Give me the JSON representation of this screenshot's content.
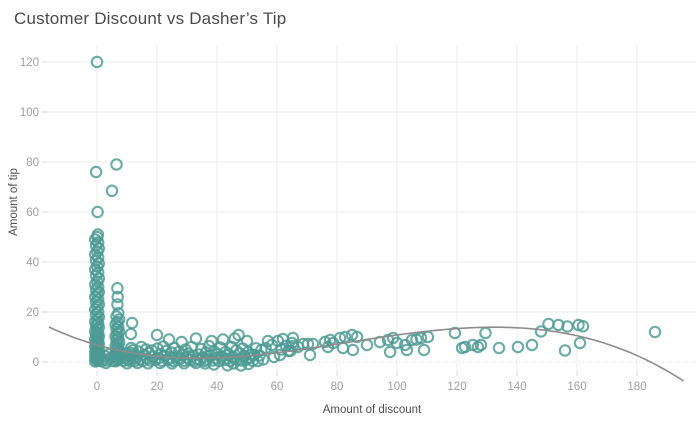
{
  "title": "Customer Discount vs Dasher’s Tip",
  "style": {
    "marker_color": "#4a9a93",
    "marker_opacity": 0.82,
    "marker_radius": 5.2,
    "marker_stroke_width": 2.1,
    "trend_color": "#8d8d8d",
    "trend_width": 1.6,
    "grid_color": "#eeeeee",
    "zero_line_color": "#d6d6d6",
    "tick_mark_color": "#d9d9d9",
    "tick_label_color": "#a0a0a0",
    "axis_title_color": "#4f4f4f",
    "title_color": "#4a4a4a"
  },
  "chart_data": {
    "type": "scatter",
    "title": "Customer Discount vs Dasher’s Tip",
    "xlabel": "Amount of discount",
    "ylabel": "Amount of tip",
    "xlim": [
      -16.67,
      200
    ],
    "ylim": [
      -3.6,
      126.8
    ],
    "x_ticks": [
      0,
      20,
      40,
      60,
      80,
      100,
      120,
      140,
      160,
      180
    ],
    "y_ticks": [
      0,
      20,
      40,
      60,
      80,
      100,
      120
    ],
    "grid": true,
    "legend": false,
    "trendline": {
      "type": "cubic",
      "coefficients": [
        6.794,
        -0.34173,
        0.0063793,
        -2.5617e-05
      ],
      "x_start": -16,
      "x_end": 195.5
    },
    "points": [
      [
        0,
        120
      ],
      [
        -0.3,
        76
      ],
      [
        0.2,
        60
      ],
      [
        6.5,
        79
      ],
      [
        5,
        68.5
      ],
      [
        -0.6,
        0.2
      ],
      [
        0.1,
        0.5
      ],
      [
        0.6,
        0.8
      ],
      [
        -0.3,
        1.1
      ],
      [
        0.4,
        1.4
      ],
      [
        -0.6,
        1.8
      ],
      [
        0.1,
        2.2
      ],
      [
        0.6,
        2.6
      ],
      [
        -0.3,
        3
      ],
      [
        0.4,
        3.4
      ],
      [
        -0.6,
        3.8
      ],
      [
        0.1,
        4.2
      ],
      [
        0.6,
        4.7
      ],
      [
        -0.3,
        5.2
      ],
      [
        0.4,
        5.7
      ],
      [
        -0.6,
        6.2
      ],
      [
        0.1,
        6.7
      ],
      [
        0.6,
        7.2
      ],
      [
        -0.3,
        7.8
      ],
      [
        0.4,
        8.4
      ],
      [
        -0.6,
        9
      ],
      [
        0.1,
        9.6
      ],
      [
        0.6,
        10.2
      ],
      [
        -0.3,
        10.9
      ],
      [
        0.4,
        11.6
      ],
      [
        -0.6,
        12.3
      ],
      [
        0.1,
        13
      ],
      [
        0.6,
        13.8
      ],
      [
        -0.3,
        14.6
      ],
      [
        0.4,
        15.4
      ],
      [
        -0.6,
        16.2
      ],
      [
        0.1,
        17
      ],
      [
        0.6,
        18
      ],
      [
        -0.3,
        19
      ],
      [
        0.4,
        20
      ],
      [
        -0.6,
        21
      ],
      [
        0.1,
        22
      ],
      [
        0.6,
        23
      ],
      [
        -0.3,
        24
      ],
      [
        0.4,
        25
      ],
      [
        -0.6,
        26
      ],
      [
        0.1,
        27
      ],
      [
        0.6,
        28
      ],
      [
        -0.3,
        29
      ],
      [
        0.4,
        30
      ],
      [
        -0.6,
        31
      ],
      [
        0.1,
        32.2
      ],
      [
        0.6,
        33.4
      ],
      [
        -0.3,
        34.6
      ],
      [
        0.4,
        35.8
      ],
      [
        -0.6,
        37
      ],
      [
        0.1,
        38.2
      ],
      [
        0.6,
        39.4
      ],
      [
        -0.3,
        40.6
      ],
      [
        0.4,
        41.8
      ],
      [
        -0.6,
        43
      ],
      [
        0.1,
        44.2
      ],
      [
        0.6,
        45.4
      ],
      [
        -0.3,
        46.6
      ],
      [
        0.4,
        47.8
      ],
      [
        -0.6,
        49
      ],
      [
        0.1,
        50
      ],
      [
        0.3,
        51
      ],
      [
        6.2,
        0.3
      ],
      [
        6.8,
        0.8
      ],
      [
        7.4,
        1.3
      ],
      [
        6.5,
        1.9
      ],
      [
        7.1,
        2.5
      ],
      [
        6.2,
        3.1
      ],
      [
        6.8,
        3.7
      ],
      [
        7.4,
        4.3
      ],
      [
        6.5,
        5
      ],
      [
        7.1,
        5.7
      ],
      [
        6.2,
        6.4
      ],
      [
        6.8,
        7.1
      ],
      [
        7.4,
        7.9
      ],
      [
        6.5,
        8.7
      ],
      [
        7.1,
        9.5
      ],
      [
        6.2,
        10.3
      ],
      [
        6.8,
        11.2
      ],
      [
        7.4,
        12.1
      ],
      [
        6.5,
        13
      ],
      [
        7.1,
        14
      ],
      [
        6.2,
        15
      ],
      [
        6.8,
        16
      ],
      [
        7.4,
        17
      ],
      [
        6.5,
        18.2
      ],
      [
        7.1,
        19.5
      ],
      [
        6.8,
        23
      ],
      [
        6.9,
        26
      ],
      [
        6.8,
        29.5
      ],
      [
        11,
        0.4
      ],
      [
        11.8,
        1.1
      ],
      [
        11.2,
        1.9
      ],
      [
        11.6,
        2.8
      ],
      [
        11.1,
        3.7
      ],
      [
        11.9,
        4.7
      ],
      [
        11.4,
        5.6
      ],
      [
        11.3,
        11.2
      ],
      [
        11.7,
        15.6
      ],
      [
        1.5,
        0.3
      ],
      [
        2.2,
        1.2
      ],
      [
        2.8,
        2.3
      ],
      [
        3.4,
        0.6
      ],
      [
        4,
        3.1
      ],
      [
        4.6,
        1.6
      ],
      [
        5.2,
        0.4
      ],
      [
        5.8,
        2.7
      ],
      [
        8.8,
        0.5
      ],
      [
        9.3,
        1.8
      ],
      [
        9.8,
        3.4
      ],
      [
        10.3,
        0.8
      ],
      [
        12.6,
        0.4
      ],
      [
        13.2,
        2
      ],
      [
        13.8,
        4.2
      ],
      [
        14.3,
        1
      ],
      [
        14.8,
        6
      ],
      [
        15.3,
        0.5
      ],
      [
        15.8,
        2.8
      ],
      [
        16.3,
        5
      ],
      [
        16.8,
        1.4
      ],
      [
        17.3,
        3.6
      ],
      [
        17.8,
        0.6
      ],
      [
        18.3,
        4.6
      ],
      [
        18.8,
        2.2
      ],
      [
        19.3,
        0.9
      ],
      [
        20,
        10.8
      ],
      [
        20.2,
        5.4
      ],
      [
        20.6,
        1.6
      ],
      [
        21.2,
        3.2
      ],
      [
        21.6,
        0.5
      ],
      [
        22.1,
        6.2
      ],
      [
        22.6,
        2.4
      ],
      [
        23.1,
        4.4
      ],
      [
        23.6,
        0.8
      ],
      [
        24,
        9
      ],
      [
        24.3,
        1.8
      ],
      [
        24.8,
        3.8
      ],
      [
        25.3,
        0.4
      ],
      [
        25.8,
        5.6
      ],
      [
        26.3,
        2
      ],
      [
        26.8,
        0.9
      ],
      [
        27.3,
        4
      ],
      [
        27.8,
        1.4
      ],
      [
        28.2,
        8
      ],
      [
        28.5,
        2.8
      ],
      [
        29,
        0.5
      ],
      [
        29.5,
        5
      ],
      [
        30,
        1.8
      ],
      [
        30.5,
        3.4
      ],
      [
        31,
        0.7
      ],
      [
        31.5,
        6
      ],
      [
        32,
        2.3
      ],
      [
        32.5,
        0.4
      ],
      [
        33,
        9.4
      ],
      [
        33.3,
        1.2
      ],
      [
        33.8,
        3
      ],
      [
        34.3,
        0.8
      ],
      [
        34.8,
        5.2
      ],
      [
        35.3,
        1.9
      ],
      [
        35.8,
        0.4
      ],
      [
        36.3,
        3.8
      ],
      [
        36.8,
        1
      ],
      [
        37.3,
        6.4
      ],
      [
        37.8,
        2.6
      ],
      [
        38.2,
        8.4
      ],
      [
        38.6,
        0.6
      ],
      [
        39.1,
        4.2
      ],
      [
        39.6,
        1.5
      ],
      [
        40.1,
        3.2
      ],
      [
        40.6,
        0.5
      ],
      [
        41.1,
        5.8
      ],
      [
        41.6,
        2.2
      ],
      [
        42,
        9
      ],
      [
        42.4,
        0.8
      ],
      [
        42.9,
        4
      ],
      [
        43.4,
        1.3
      ],
      [
        43.9,
        3
      ],
      [
        44.4,
        0.5
      ],
      [
        44.9,
        6
      ],
      [
        45.4,
        2
      ],
      [
        45.9,
        9.4
      ],
      [
        46.4,
        4.6
      ],
      [
        46.9,
        1
      ],
      [
        47.2,
        10.8
      ],
      [
        47.6,
        3.4
      ],
      [
        48.1,
        0.6
      ],
      [
        48.6,
        5.4
      ],
      [
        49.1,
        2.4
      ],
      [
        49.6,
        0.9
      ],
      [
        50,
        8.4
      ],
      [
        50.4,
        4
      ],
      [
        50.9,
        1.6
      ],
      [
        51.4,
        3
      ],
      [
        51.9,
        0.5
      ],
      [
        52.4,
        2.8
      ],
      [
        53,
        5.5
      ],
      [
        53.6,
        0.4
      ],
      [
        54.2,
        2.6
      ],
      [
        54.8,
        4.8
      ],
      [
        55.4,
        1
      ],
      [
        3,
        -0.4
      ],
      [
        10,
        -0.5
      ],
      [
        13.5,
        -0.4
      ],
      [
        17,
        -0.5
      ],
      [
        21,
        -0.4
      ],
      [
        25,
        -0.6
      ],
      [
        29,
        -0.5
      ],
      [
        33,
        -0.4
      ],
      [
        36,
        -0.6
      ],
      [
        39,
        -1
      ],
      [
        43.5,
        -1.3
      ],
      [
        45.5,
        -0.6
      ],
      [
        48,
        -1.4
      ],
      [
        50.5,
        -0.8
      ],
      [
        56.2,
        5.5
      ],
      [
        57,
        8.4
      ],
      [
        58.3,
        6.8
      ],
      [
        59,
        2
      ],
      [
        60.3,
        8.4
      ],
      [
        61,
        2.8
      ],
      [
        61.5,
        5
      ],
      [
        62,
        9.2
      ],
      [
        63,
        6.5
      ],
      [
        63.8,
        4.5
      ],
      [
        65,
        7.6
      ],
      [
        65.3,
        9.6
      ],
      [
        64.5,
        4.5
      ],
      [
        65.3,
        6.4
      ],
      [
        67,
        6
      ],
      [
        68.7,
        7.2
      ],
      [
        70.3,
        7.2
      ],
      [
        72,
        7.2
      ],
      [
        71,
        2.8
      ],
      [
        76,
        8
      ],
      [
        77.7,
        8.8
      ],
      [
        78.7,
        7.6
      ],
      [
        77,
        6
      ],
      [
        81,
        9.6
      ],
      [
        82.7,
        10
      ],
      [
        82,
        5.6
      ],
      [
        85,
        10.8
      ],
      [
        86.7,
        10
      ],
      [
        85.3,
        4.8
      ],
      [
        90,
        6.8
      ],
      [
        94.3,
        8
      ],
      [
        97,
        8.8
      ],
      [
        98.7,
        9.6
      ],
      [
        100,
        7.6
      ],
      [
        97.7,
        4
      ],
      [
        102.7,
        6.8
      ],
      [
        103.3,
        4.8
      ],
      [
        105,
        8.8
      ],
      [
        106.5,
        9
      ],
      [
        108,
        9.6
      ],
      [
        109,
        4.8
      ],
      [
        110.3,
        10
      ],
      [
        119.3,
        11.6
      ],
      [
        121.7,
        5.6
      ],
      [
        122.7,
        6
      ],
      [
        125.3,
        6.8
      ],
      [
        127,
        6
      ],
      [
        128,
        6.8
      ],
      [
        129.5,
        11.6
      ],
      [
        134,
        5.6
      ],
      [
        140.3,
        6
      ],
      [
        145,
        6.8
      ],
      [
        148,
        12.2
      ],
      [
        150.5,
        15.2
      ],
      [
        153.8,
        14.8
      ],
      [
        156.8,
        14.2
      ],
      [
        160.5,
        14.8
      ],
      [
        162,
        14.3
      ],
      [
        156,
        4.6
      ],
      [
        161,
        7.6
      ],
      [
        186,
        12
      ]
    ]
  }
}
